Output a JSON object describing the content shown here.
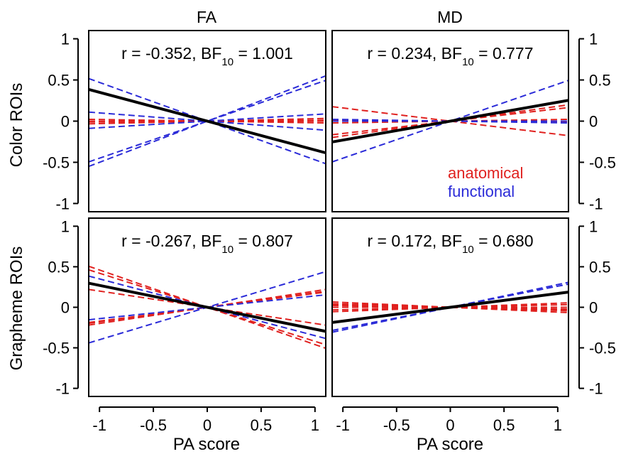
{
  "chart_data": {
    "type": "line",
    "columns": [
      "FA",
      "MD"
    ],
    "rows": [
      "Color ROIs",
      "Grapheme ROIs"
    ],
    "xlabel": "PA score",
    "x_ticks": [
      "-1",
      "-0.5",
      "0",
      "0.5",
      "1"
    ],
    "y_ticks": [
      "1",
      "0.5",
      "0",
      "-0.5",
      "-1"
    ],
    "xlim": [
      -1.1,
      1.1
    ],
    "ylim": [
      -1.1,
      1.1
    ],
    "legend": {
      "placement": "bottom-right of top-right panel",
      "entries": [
        {
          "name": "anatomical",
          "color": "#e0211f"
        },
        {
          "name": "functional",
          "color": "#2b2bd8"
        }
      ]
    },
    "colors": {
      "anatomical": "#e0211f",
      "functional": "#2b2bd8",
      "mean": "#000000"
    },
    "panels": [
      {
        "column": "FA",
        "row": "Color ROIs",
        "stat": {
          "r": "r = -0.352",
          "bf_prefix": ", BF",
          "bf_sub": "10",
          "bf_value": " = 1.001"
        },
        "mean_slope": -0.35,
        "anatomical_slopes": [
          0.03,
          0.0,
          -0.02,
          0.01
        ],
        "functional_slopes": [
          0.5,
          0.45,
          0.08,
          -0.1,
          -0.47
        ]
      },
      {
        "column": "MD",
        "row": "Color ROIs",
        "stat": {
          "r": "r = 0.234",
          "bf_prefix": ", BF",
          "bf_sub": "10",
          "bf_value": " = 0.777"
        },
        "mean_slope": 0.23,
        "anatomical_slopes": [
          -0.16,
          0.18,
          0.15,
          0.02,
          -0.01
        ],
        "functional_slopes": [
          0.45,
          -0.02,
          0.0
        ]
      },
      {
        "column": "FA",
        "row": "Grapheme ROIs",
        "stat": {
          "r": "r = -0.267",
          "bf_prefix": ", BF",
          "bf_sub": "10",
          "bf_value": " = 0.807"
        },
        "mean_slope": -0.27,
        "anatomical_slopes": [
          -0.46,
          -0.42,
          0.2,
          0.18,
          0.17,
          -0.2
        ],
        "functional_slopes": [
          0.4,
          0.14,
          -0.35
        ]
      },
      {
        "column": "MD",
        "row": "Grapheme ROIs",
        "stat": {
          "r": "r = 0.172",
          "bf_prefix": ", BF",
          "bf_sub": "10",
          "bf_value": " = 0.680"
        },
        "mean_slope": 0.17,
        "anatomical_slopes": [
          -0.06,
          -0.04,
          0.0,
          0.03,
          -0.03,
          0.05,
          -0.02
        ],
        "functional_slopes": [
          0.28,
          0.26
        ]
      }
    ]
  }
}
